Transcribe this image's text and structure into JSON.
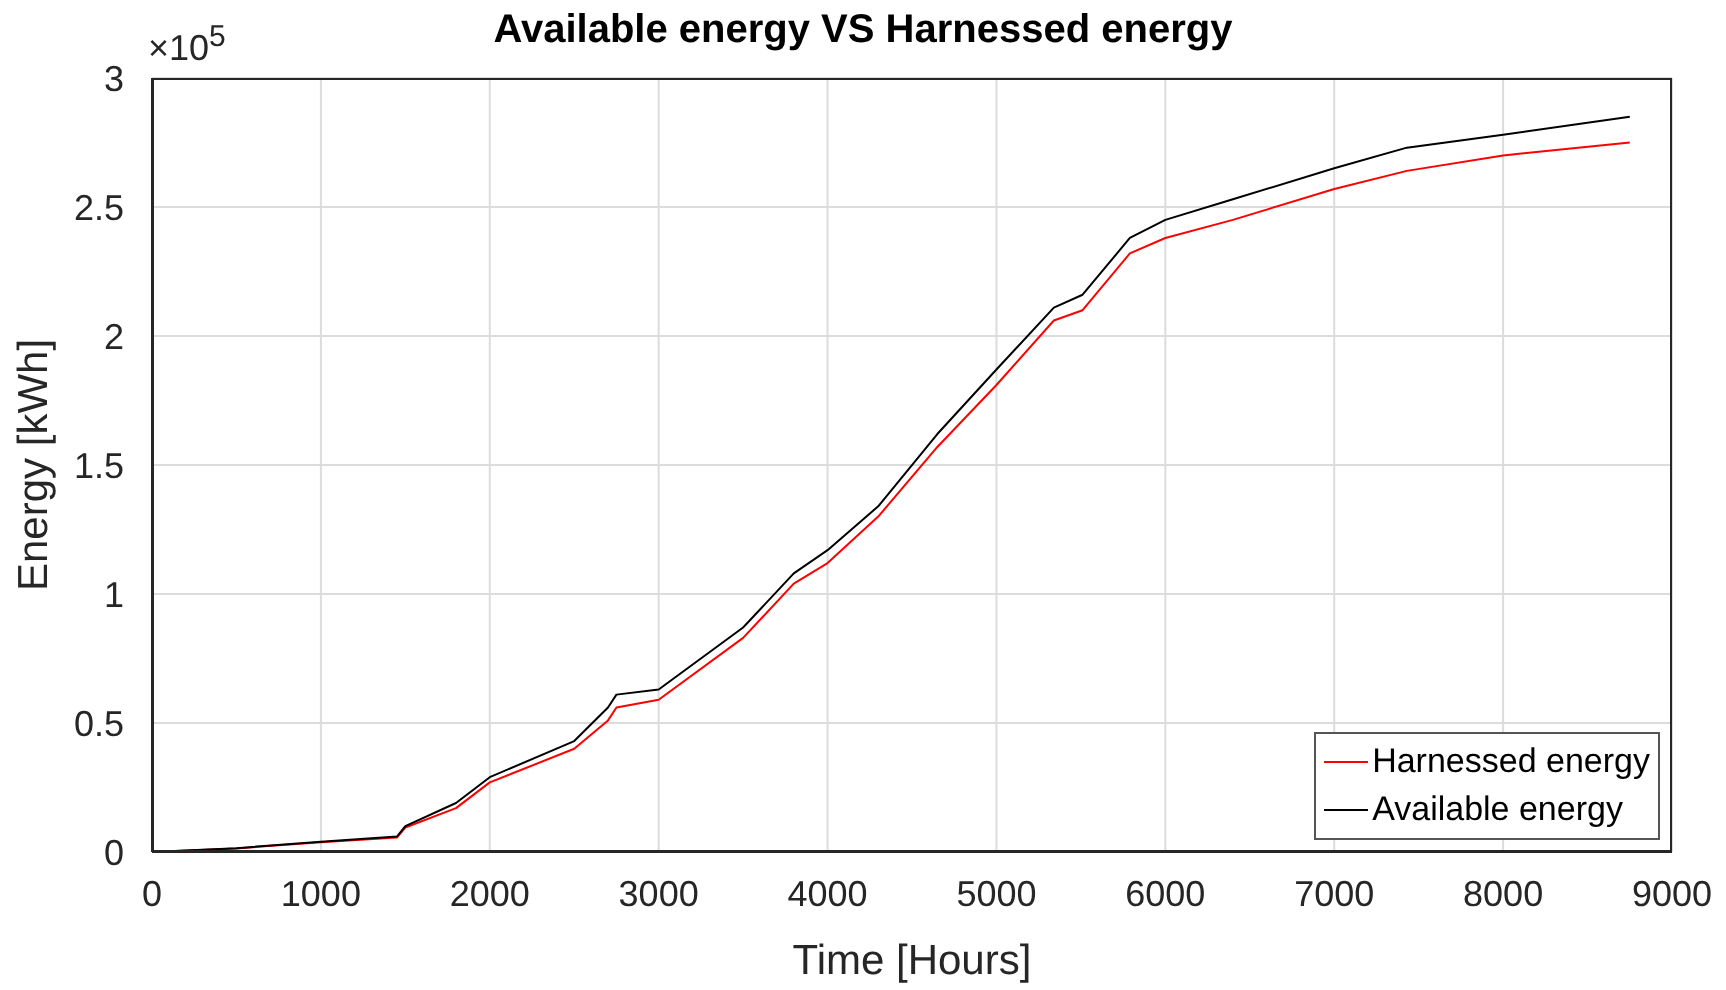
{
  "chart_data": {
    "type": "line",
    "title": "Available energy VS Harnessed energy",
    "xlabel": "Time [Hours]",
    "ylabel": "Energy [kWh]",
    "x": [
      0,
      500,
      1000,
      1450,
      1500,
      1800,
      2000,
      2500,
      2700,
      2750,
      3000,
      3500,
      3800,
      4000,
      4300,
      4650,
      5000,
      5340,
      5510,
      5790,
      6000,
      6400,
      7000,
      7430,
      8000,
      8750
    ],
    "series": [
      {
        "name": "Harnessed energy",
        "color": "#ff0000",
        "values": [
          0,
          0.014,
          0.038,
          0.056,
          0.095,
          0.17,
          0.27,
          0.4,
          0.51,
          0.56,
          0.59,
          0.83,
          1.04,
          1.12,
          1.3,
          1.57,
          1.81,
          2.06,
          2.1,
          2.32,
          2.38,
          2.45,
          2.57,
          2.64,
          2.7,
          2.75
        ]
      },
      {
        "name": "Available energy",
        "color": "#000000",
        "values": [
          0,
          0.015,
          0.04,
          0.06,
          0.1,
          0.19,
          0.29,
          0.43,
          0.56,
          0.61,
          0.63,
          0.87,
          1.08,
          1.17,
          1.34,
          1.62,
          1.87,
          2.11,
          2.16,
          2.38,
          2.45,
          2.53,
          2.65,
          2.73,
          2.78,
          2.85
        ]
      }
    ],
    "xlim": [
      0,
      9000
    ],
    "xticks": [
      0,
      1000,
      2000,
      3000,
      4000,
      5000,
      6000,
      7000,
      8000,
      9000
    ],
    "ylim": [
      0,
      3
    ],
    "yticks": [
      0,
      0.5,
      1,
      1.5,
      2,
      2.5,
      3
    ],
    "annotations": [
      "×10$^{5}$"
    ],
    "grid": true,
    "legend": "bottom right",
    "marker": "none",
    "line_style": "solid"
  }
}
